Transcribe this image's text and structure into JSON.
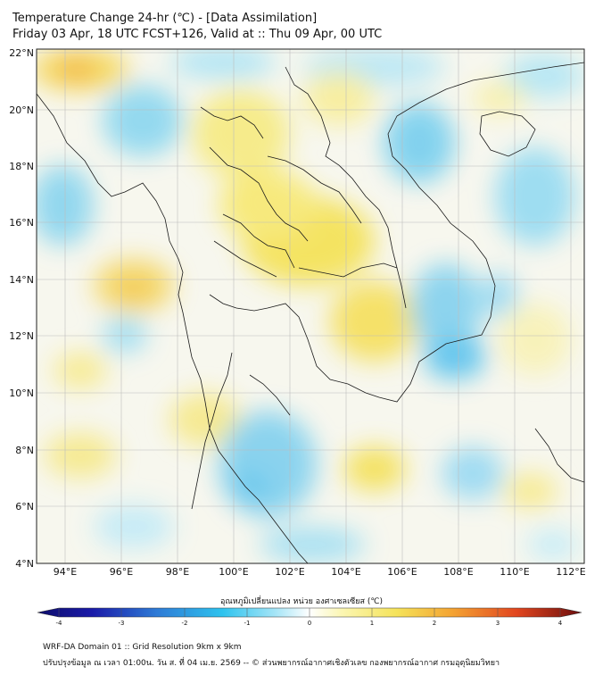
{
  "title_line1": "Temperature Change 24-hr (℃) - [Data Assimilation]",
  "title_line2": "Friday 03 Apr, 18 UTC FCST+126, Valid at :: Thu 09 Apr, 00 UTC",
  "lat_labels": [
    "22°N",
    "20°N",
    "18°N",
    "16°N",
    "14°N",
    "12°N",
    "10°N",
    "8°N",
    "6°N",
    "4°N"
  ],
  "lon_labels": [
    "94°E",
    "96°E",
    "98°E",
    "100°E",
    "102°E",
    "104°E",
    "106°E",
    "108°E",
    "110°E",
    "112°E"
  ],
  "colorbar": {
    "label": "อุณหภูมิเปลี่ยนแปลง หน่วย องศาเซลเซียส (℃)",
    "ticks": [
      "-4",
      "-3",
      "-2",
      "-1",
      "0",
      "1",
      "2",
      "3",
      "4"
    ],
    "min": -4,
    "max": 4
  },
  "footer_line1": "WRF-DA Domain 01 :: Grid Resolution 9km x 9km",
  "footer_line2": "ปรับปรุงข้อมูล ณ เวลา 01:00น. วัน ส. ที่ 04 เม.ย. 2569 -- © ส่วนพยากรณ์อากาศเชิงตัวเลข กองพยากรณ์อากาศ กรมอุตุนิยมวิทยา"
}
